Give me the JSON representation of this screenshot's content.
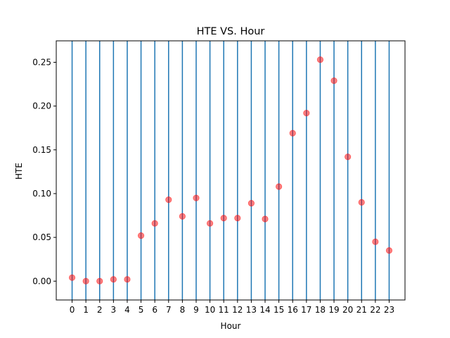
{
  "chart_data": {
    "type": "scatter",
    "title": "HTE VS. Hour",
    "xlabel": "Hour",
    "ylabel": "HTE",
    "x": [
      0,
      1,
      2,
      3,
      4,
      5,
      6,
      7,
      8,
      9,
      10,
      11,
      12,
      13,
      14,
      15,
      16,
      17,
      18,
      19,
      20,
      21,
      22,
      23
    ],
    "y": [
      0.004,
      0.0,
      0.0,
      0.002,
      0.002,
      0.052,
      0.066,
      0.093,
      0.074,
      0.095,
      0.066,
      0.072,
      0.072,
      0.089,
      0.071,
      0.108,
      0.169,
      0.192,
      0.253,
      0.229,
      0.142,
      0.09,
      0.045,
      0.035
    ],
    "xlim": [
      -1.15,
      24.15
    ],
    "ylim": [
      -0.0215,
      0.2745
    ],
    "x_ticks": [
      "0",
      "1",
      "2",
      "3",
      "4",
      "5",
      "6",
      "7",
      "8",
      "9",
      "10",
      "11",
      "12",
      "13",
      "14",
      "15",
      "16",
      "17",
      "18",
      "19",
      "20",
      "21",
      "22",
      "23"
    ],
    "y_ticks": [
      0.0,
      0.05,
      0.1,
      0.15,
      0.2,
      0.25
    ],
    "y_tick_labels": [
      "0.00",
      "0.05",
      "0.10",
      "0.15",
      "0.20",
      "0.25"
    ],
    "vertical_lines_at": [
      0,
      1,
      2,
      3,
      4,
      5,
      6,
      7,
      8,
      9,
      10,
      11,
      12,
      13,
      14,
      15,
      16,
      17,
      18,
      19,
      20,
      21,
      22,
      23
    ],
    "grid": false,
    "colors": {
      "vline": "#1f77b4",
      "marker": "#ff0000",
      "marker_alpha": 0.5
    }
  }
}
